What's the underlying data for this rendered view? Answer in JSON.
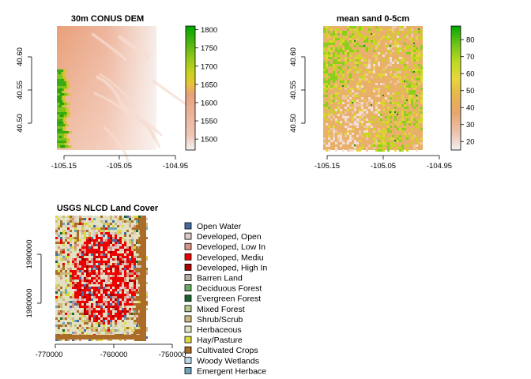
{
  "chart_data": [
    {
      "type": "heatmap",
      "title": "30m CONUS DEM",
      "xlabel": "",
      "ylabel": "",
      "x_ticks": [
        -105.15,
        -105.05,
        -104.95
      ],
      "x_tick_labels": [
        "-105.15",
        "-105.05",
        "-104.95"
      ],
      "y_ticks": [
        40.5,
        40.55,
        40.6
      ],
      "y_tick_labels": [
        "40.50",
        "40.55",
        "40.60"
      ],
      "xlim": [
        -105.2,
        -104.94
      ],
      "ylim": [
        40.475,
        40.64
      ],
      "data_extent": {
        "x": [
          -105.155,
          -104.98
        ],
        "y": [
          40.475,
          40.64
        ]
      },
      "legend": {
        "type": "colorbar",
        "range": [
          1470,
          1810
        ],
        "ticks": [
          1500,
          1550,
          1600,
          1650,
          1700,
          1750,
          1800
        ],
        "tick_labels": [
          "1500",
          "1550",
          "1600",
          "1650",
          "1700",
          "1750",
          "1800"
        ],
        "colors": [
          "#f2f2f2",
          "#eec7b6",
          "#ebb29a",
          "#e6a27a",
          "#e8c33c",
          "#c9d21e",
          "#8fc71a",
          "#45b20f",
          "#00a600"
        ]
      },
      "field_description": "elevation decreases west to east; high ridge along west edge"
    },
    {
      "type": "heatmap",
      "title": "mean sand 0-5cm",
      "xlabel": "",
      "ylabel": "",
      "x_ticks": [
        -105.15,
        -105.05,
        -104.95
      ],
      "x_tick_labels": [
        "-105.15",
        "-105.05",
        "-104.95"
      ],
      "y_ticks": [
        40.5,
        40.55,
        40.6
      ],
      "y_tick_labels": [
        "40.50",
        "40.55",
        "40.60"
      ],
      "xlim": [
        -105.2,
        -104.94
      ],
      "ylim": [
        40.475,
        40.64
      ],
      "data_extent": {
        "x": [
          -105.155,
          -104.98
        ],
        "y": [
          40.475,
          40.64
        ]
      },
      "legend": {
        "type": "colorbar",
        "range": [
          15,
          88
        ],
        "ticks": [
          20,
          30,
          40,
          50,
          60,
          70,
          80
        ],
        "tick_labels": [
          "20",
          "30",
          "40",
          "50",
          "60",
          "70",
          "80"
        ],
        "colors": [
          "#f2f2f2",
          "#eec7b6",
          "#e7a56e",
          "#e6b84a",
          "#e8d83a",
          "#b8d920",
          "#6cc214",
          "#00a600"
        ]
      }
    },
    {
      "type": "heatmap",
      "title": "USGS NLCD Land Cover",
      "xlabel": "",
      "ylabel": "",
      "x_ticks": [
        -770000,
        -760000,
        -750000
      ],
      "x_tick_labels": [
        "-770000",
        "-760000",
        "-750000"
      ],
      "y_ticks": [
        1980000,
        1990000
      ],
      "y_tick_labels": [
        "1980000",
        "1990000"
      ],
      "xlim": [
        -771000,
        -749500
      ],
      "ylim": [
        1976000,
        1994800
      ],
      "data_extent": {
        "x": [
          -769000,
          -754500
        ],
        "y": [
          1976000,
          1994800
        ]
      },
      "legend": {
        "type": "categorical",
        "entries": [
          {
            "label": "Open Water",
            "color": "#476ba0"
          },
          {
            "label": "Developed, Open",
            "color": "#ddc9c9"
          },
          {
            "label": "Developed, Low In",
            "color": "#d89382"
          },
          {
            "label": "Developed, Mediu",
            "color": "#ed0000"
          },
          {
            "label": "Developed, High In",
            "color": "#aa0000"
          },
          {
            "label": "Barren Land",
            "color": "#b2ada3"
          },
          {
            "label": "Deciduous Forest",
            "color": "#68aa63"
          },
          {
            "label": "Evergreen Forest",
            "color": "#1c6330"
          },
          {
            "label": "Mixed Forest",
            "color": "#b5c98e"
          },
          {
            "label": "Shrub/Scrub",
            "color": "#ccba7c"
          },
          {
            "label": "Herbaceous",
            "color": "#e2e2c1"
          },
          {
            "label": "Hay/Pasture",
            "color": "#dbd83d"
          },
          {
            "label": "Cultivated Crops",
            "color": "#ab6c28"
          },
          {
            "label": "Woody Wetlands",
            "color": "#bad8ea"
          },
          {
            "label": "Emergent Herbace",
            "color": "#70a3ba"
          }
        ]
      }
    }
  ]
}
